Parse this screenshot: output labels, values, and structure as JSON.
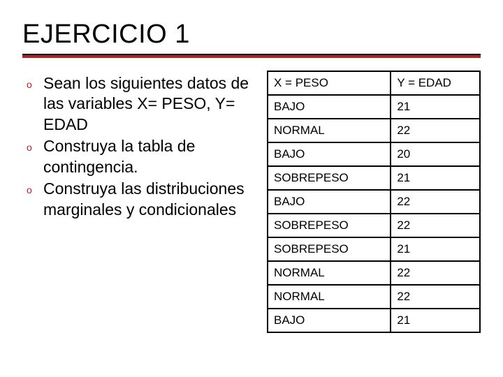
{
  "slide": {
    "title": "EJERCICIO 1",
    "accent_color": "#b22222",
    "title_color": "#000000",
    "title_fontsize": 38,
    "body_fontsize": 23,
    "table_fontsize": 17,
    "background": "#ffffff",
    "rule_border_top": "#000000"
  },
  "bullets": [
    {
      "marker": "o",
      "text": "Sean los siguientes datos de las variables X= PESO, Y= EDAD"
    },
    {
      "marker": "o",
      "text": "Construya la tabla de contingencia."
    },
    {
      "marker": "o",
      "text": "Construya las distribuciones marginales y condicionales"
    }
  ],
  "table": {
    "columns": [
      {
        "label": "X = PESO",
        "width": "58%"
      },
      {
        "label": "Y = EDAD",
        "width": "42%"
      }
    ],
    "rows": [
      [
        "BAJO",
        "21"
      ],
      [
        "NORMAL",
        "22"
      ],
      [
        "BAJO",
        "20"
      ],
      [
        "SOBREPESO",
        "21"
      ],
      [
        "BAJO",
        "22"
      ],
      [
        "SOBREPESO",
        "22"
      ],
      [
        "SOBREPESO",
        "21"
      ],
      [
        "NORMAL",
        "22"
      ],
      [
        "NORMAL",
        "22"
      ],
      [
        "BAJO",
        "21"
      ]
    ],
    "border_color": "#000000",
    "border_width": 2
  }
}
